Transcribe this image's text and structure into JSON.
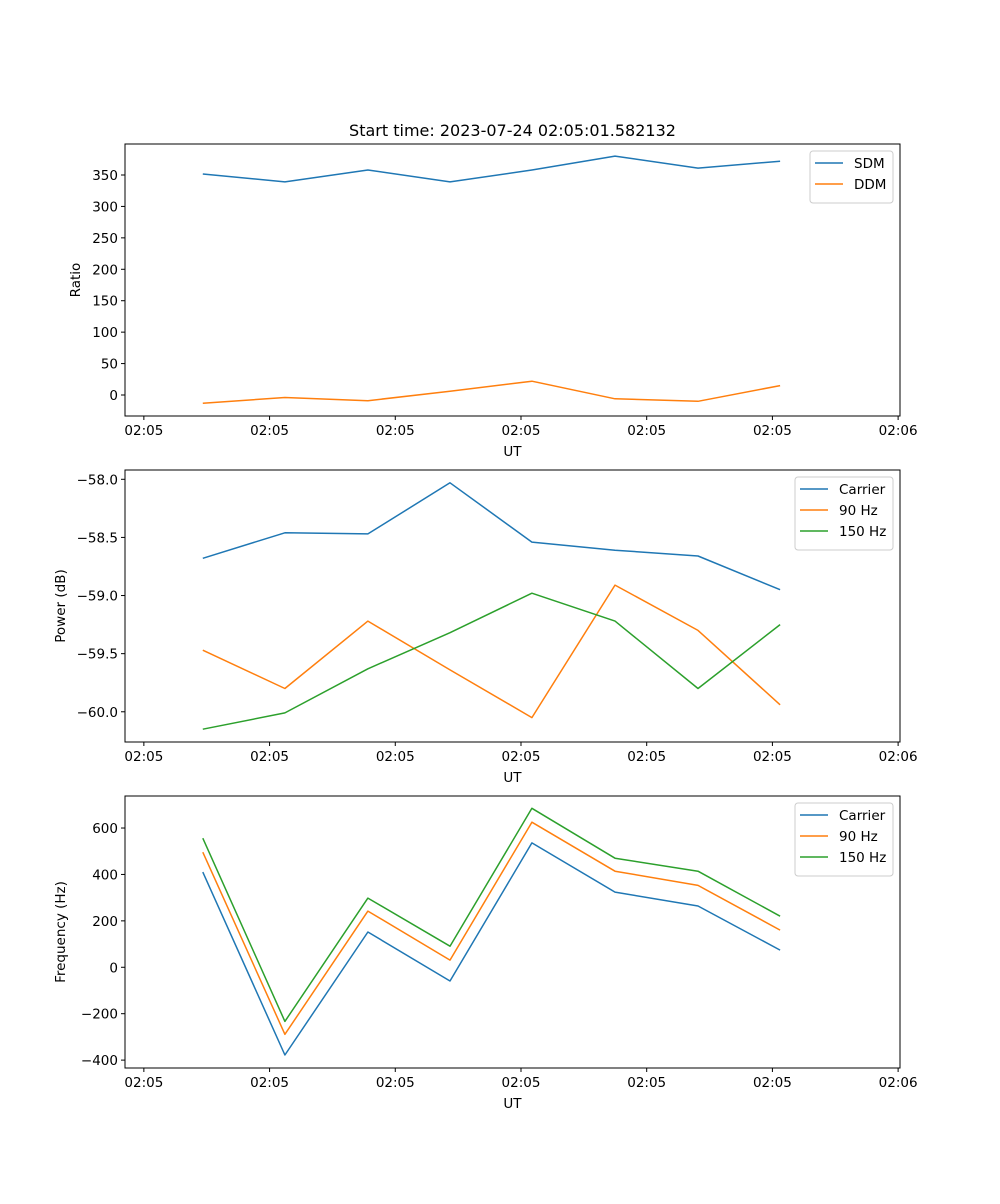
{
  "figure_title": "Start time: 2023-07-24 02:05:01.582132",
  "chart_data": [
    {
      "type": "line",
      "title": "Start time: 2023-07-24 02:05:01.582132",
      "xlabel": "UT",
      "ylabel": "Ratio",
      "x_unit": "seconds after 02:05:00",
      "x": [
        4.69,
        11.22,
        17.82,
        24.35,
        30.87,
        37.48,
        44.08,
        50.61
      ],
      "xlim": [
        -1.5,
        60.15
      ],
      "xticks": [
        0,
        10,
        20,
        30,
        40,
        50,
        60
      ],
      "xtick_labels": [
        "02:05",
        "02:05",
        "02:05",
        "02:05",
        "02:05",
        "02:05",
        "02:06"
      ],
      "ylim": [
        -33.4,
        399.3
      ],
      "yticks": [
        0,
        50,
        100,
        150,
        200,
        250,
        300,
        350
      ],
      "ytick_labels": [
        "0",
        "50",
        "100",
        "150",
        "200",
        "250",
        "300",
        "350"
      ],
      "legend_placement": "top-right",
      "grid": false,
      "series": [
        {
          "name": "SDM",
          "color": "#1f77b4",
          "values": [
            351.6,
            339,
            358,
            339,
            358,
            380,
            361,
            372
          ]
        },
        {
          "name": "DDM",
          "color": "#ff7f0e",
          "values": [
            -13,
            -4,
            -9,
            6,
            22,
            -6,
            -10,
            15
          ]
        }
      ]
    },
    {
      "type": "line",
      "title": "",
      "xlabel": "UT",
      "ylabel": "Power (dB)",
      "x_unit": "seconds after 02:05:00",
      "x": [
        4.69,
        11.22,
        17.82,
        24.35,
        30.87,
        37.48,
        44.08,
        50.61
      ],
      "xlim": [
        -1.5,
        60.15
      ],
      "xticks": [
        0,
        10,
        20,
        30,
        40,
        50,
        60
      ],
      "xtick_labels": [
        "02:05",
        "02:05",
        "02:05",
        "02:05",
        "02:05",
        "02:05",
        "02:06"
      ],
      "ylim": [
        -60.26,
        -57.92
      ],
      "yticks": [
        -60.0,
        -59.5,
        -59.0,
        -58.5,
        -58.0
      ],
      "ytick_labels": [
        "−60.0",
        "−59.5",
        "−59.0",
        "−58.5",
        "−58.0"
      ],
      "legend_placement": "top-right",
      "grid": false,
      "series": [
        {
          "name": "Carrier",
          "color": "#1f77b4",
          "values": [
            -58.68,
            -58.46,
            -58.47,
            -58.03,
            -58.54,
            -58.61,
            -58.66,
            -58.95
          ]
        },
        {
          "name": "90 Hz",
          "color": "#ff7f0e",
          "values": [
            -59.47,
            -59.8,
            -59.22,
            -59.64,
            -60.05,
            -58.91,
            -59.3,
            -59.94
          ]
        },
        {
          "name": "150 Hz",
          "color": "#2ca02c",
          "values": [
            -60.15,
            -60.01,
            -59.63,
            -59.32,
            -58.98,
            -59.22,
            -59.8,
            -59.25
          ]
        }
      ]
    },
    {
      "type": "line",
      "title": "",
      "xlabel": "UT",
      "ylabel": "Frequency (Hz)",
      "x_unit": "seconds after 02:05:00",
      "x": [
        4.69,
        11.22,
        17.82,
        24.35,
        30.87,
        37.48,
        44.08,
        50.61
      ],
      "xlim": [
        -1.5,
        60.15
      ],
      "xticks": [
        0,
        10,
        20,
        30,
        40,
        50,
        60
      ],
      "xtick_labels": [
        "02:05",
        "02:05",
        "02:05",
        "02:05",
        "02:05",
        "02:05",
        "02:06"
      ],
      "ylim": [
        -434,
        738
      ],
      "yticks": [
        -400,
        -200,
        0,
        200,
        400,
        600
      ],
      "ytick_labels": [
        "−400",
        "−200",
        "0",
        "200",
        "400",
        "600"
      ],
      "legend_placement": "top-right",
      "grid": false,
      "series": [
        {
          "name": "Carrier",
          "color": "#1f77b4",
          "values": [
            410,
            -378,
            152,
            -59,
            536,
            324,
            264,
            74
          ]
        },
        {
          "name": "90 Hz",
          "color": "#ff7f0e",
          "values": [
            496,
            -289,
            242,
            31,
            625,
            414,
            353,
            160
          ]
        },
        {
          "name": "150 Hz",
          "color": "#2ca02c",
          "values": [
            556,
            -233,
            298,
            91,
            685,
            470,
            414,
            220
          ]
        }
      ]
    }
  ]
}
